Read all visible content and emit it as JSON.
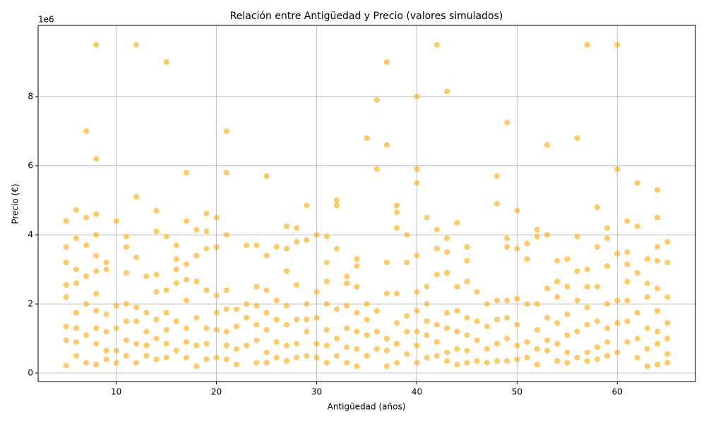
{
  "chart_data": {
    "type": "scatter",
    "title": "Relación entre Antigüedad y Precio (valores simulados)",
    "x_label": "Antigüedad (años)",
    "y_label": "Precio (€)",
    "y_offset_label": "1e6",
    "color": "orange",
    "alpha": 0.6,
    "grid": true,
    "xlim": [
      2.2,
      67.8
    ],
    "ylim": [
      -245000,
      10060000
    ],
    "xticks": [
      10,
      20,
      30,
      40,
      50,
      60
    ],
    "yticks": [
      {
        "value": 0,
        "label": "0"
      },
      {
        "value": 2000000,
        "label": "2"
      },
      {
        "value": 4000000,
        "label": "4"
      },
      {
        "value": 6000000,
        "label": "6"
      },
      {
        "value": 8000000,
        "label": "8"
      }
    ],
    "x": [
      5,
      5,
      5,
      5,
      5,
      5,
      5,
      5,
      6,
      6,
      6,
      6,
      6,
      6,
      6,
      6,
      7,
      7,
      7,
      7,
      7,
      7,
      7,
      8,
      8,
      8,
      8,
      8,
      8,
      8,
      8,
      8,
      8,
      8,
      9,
      9,
      9,
      9,
      9,
      9,
      10,
      10,
      10,
      10,
      10,
      11,
      11,
      11,
      11,
      11,
      11,
      11,
      12,
      12,
      12,
      12,
      12,
      12,
      12,
      13,
      13,
      13,
      13,
      13,
      14,
      14,
      14,
      14,
      14,
      14,
      14,
      15,
      15,
      15,
      15,
      15,
      15,
      15,
      16,
      16,
      16,
      16,
      16,
      16,
      17,
      17,
      17,
      17,
      17,
      17,
      17,
      17,
      18,
      18,
      18,
      18,
      18,
      18,
      19,
      19,
      19,
      19,
      19,
      19,
      19,
      20,
      20,
      20,
      20,
      20,
      20,
      21,
      21,
      21,
      21,
      21,
      21,
      21,
      21,
      22,
      22,
      22,
      22,
      23,
      23,
      23,
      23,
      24,
      24,
      24,
      24,
      24,
      24,
      25,
      25,
      25,
      25,
      25,
      25,
      25,
      26,
      26,
      26,
      26,
      26,
      27,
      27,
      27,
      27,
      27,
      27,
      27,
      28,
      28,
      28,
      28,
      28,
      28,
      29,
      29,
      29,
      29,
      29,
      29,
      30,
      30,
      30,
      30,
      30,
      31,
      31,
      31,
      31,
      31,
      31,
      31,
      32,
      32,
      32,
      32,
      32,
      32,
      33,
      33,
      33,
      33,
      33,
      33,
      34,
      34,
      34,
      34,
      34,
      34,
      34,
      35,
      35,
      35,
      35,
      35,
      36,
      36,
      36,
      36,
      36,
      37,
      37,
      37,
      37,
      37,
      37,
      37,
      38,
      38,
      38,
      38,
      38,
      38,
      38,
      39,
      39,
      39,
      39,
      39,
      40,
      40,
      40,
      40,
      40,
      40,
      40,
      40,
      40,
      41,
      41,
      41,
      41,
      41,
      41,
      42,
      42,
      42,
      42,
      42,
      42,
      42,
      43,
      43,
      43,
      43,
      43,
      43,
      43,
      43,
      44,
      44,
      44,
      44,
      44,
      44,
      45,
      45,
      45,
      45,
      45,
      45,
      45,
      46,
      46,
      46,
      46,
      47,
      47,
      47,
      47,
      48,
      48,
      48,
      48,
      48,
      48,
      49,
      49,
      49,
      49,
      49,
      49,
      49,
      50,
      50,
      50,
      50,
      50,
      50,
      51,
      51,
      51,
      51,
      51,
      52,
      52,
      52,
      52,
      52,
      52,
      53,
      53,
      53,
      53,
      53,
      53,
      54,
      54,
      54,
      54,
      54,
      54,
      55,
      55,
      55,
      55,
      55,
      55,
      56,
      56,
      56,
      56,
      56,
      56,
      57,
      57,
      57,
      57,
      57,
      57,
      57,
      58,
      58,
      58,
      58,
      58,
      58,
      59,
      59,
      59,
      59,
      59,
      59,
      59,
      60,
      60,
      60,
      60,
      60,
      60,
      61,
      61,
      61,
      61,
      61,
      61,
      61,
      62,
      62,
      62,
      62,
      62,
      62,
      63,
      63,
      63,
      63,
      63,
      63,
      64,
      64,
      64,
      64,
      64,
      64,
      64,
      64,
      64,
      65,
      65,
      65,
      65,
      65,
      65,
      65
    ],
    "values": [
      220000,
      950000,
      1350000,
      2200000,
      2550000,
      3200000,
      3650000,
      4400000,
      500000,
      900000,
      1300000,
      1750000,
      2600000,
      3000000,
      3900000,
      4720000,
      300000,
      1100000,
      2000000,
      2800000,
      3700000,
      4500000,
      7000000,
      250000,
      850000,
      1300000,
      1800000,
      2300000,
      2950000,
      3400000,
      4000000,
      4600000,
      6200000,
      9500000,
      400000,
      650000,
      1200000,
      1700000,
      3000000,
      3200000,
      300000,
      650000,
      1300000,
      1950000,
      4400000,
      500000,
      950000,
      1500000,
      2000000,
      2900000,
      3650000,
      3950000,
      300000,
      850000,
      1500000,
      1900000,
      3350000,
      5100000,
      9500000,
      500000,
      800000,
      1200000,
      1750000,
      2800000,
      400000,
      1000000,
      1550000,
      2350000,
      2850000,
      4100000,
      4700000,
      450000,
      850000,
      1250000,
      1750000,
      2400000,
      3950000,
      9000000,
      650000,
      1500000,
      2600000,
      3000000,
      3300000,
      3700000,
      450000,
      900000,
      1300000,
      2100000,
      2700000,
      3150000,
      4400000,
      5800000,
      200000,
      800000,
      1600000,
      2650000,
      3400000,
      4150000,
      400000,
      850000,
      1300000,
      2400000,
      3600000,
      4100000,
      4620000,
      450000,
      1250000,
      1750000,
      2250000,
      3650000,
      4500000,
      400000,
      800000,
      1200000,
      1850000,
      2400000,
      4000000,
      5800000,
      7000000,
      250000,
      700000,
      1350000,
      1850000,
      800000,
      1600000,
      2000000,
      3700000,
      300000,
      950000,
      1400000,
      1950000,
      2500000,
      3700000,
      300000,
      600000,
      1250000,
      1750000,
      2400000,
      3400000,
      5700000,
      450000,
      900000,
      1550000,
      2100000,
      3650000,
      350000,
      800000,
      1400000,
      1950000,
      2950000,
      3600000,
      4250000,
      450000,
      850000,
      1550000,
      2550000,
      3800000,
      4200000,
      500000,
      1200000,
      1550000,
      2000000,
      3850000,
      4850000,
      450000,
      850000,
      1600000,
      2350000,
      4000000,
      300000,
      800000,
      1250000,
      2000000,
      2650000,
      3200000,
      3950000,
      500000,
      1000000,
      1850000,
      3600000,
      4850000,
      5000000,
      300000,
      750000,
      1300000,
      1950000,
      2600000,
      2800000,
      200000,
      700000,
      1200000,
      1750000,
      2500000,
      3100000,
      3300000,
      500000,
      1100000,
      1550000,
      2000000,
      6800000,
      700000,
      1200000,
      1800000,
      5900000,
      7900000,
      200000,
      650000,
      1000000,
      2300000,
      3200000,
      6600000,
      9000000,
      300000,
      850000,
      1450000,
      2300000,
      4200000,
      4650000,
      4850000,
      550000,
      1200000,
      1650000,
      3200000,
      4000000,
      300000,
      800000,
      1200000,
      1800000,
      2350000,
      3400000,
      5500000,
      5900000,
      8000000,
      450000,
      1100000,
      1500000,
      2000000,
      2500000,
      4500000,
      500000,
      900000,
      1400000,
      2850000,
      3600000,
      4150000,
      9500000,
      350000,
      600000,
      1300000,
      1750000,
      2900000,
      3500000,
      3900000,
      8150000,
      250000,
      700000,
      1200000,
      1800000,
      2500000,
      4350000,
      300000,
      650000,
      1100000,
      1600000,
      2650000,
      3250000,
      3650000,
      350000,
      950000,
      1500000,
      2350000,
      300000,
      700000,
      1350000,
      2000000,
      350000,
      850000,
      1550000,
      2100000,
      4900000,
      5700000,
      350000,
      1000000,
      1600000,
      2100000,
      3650000,
      3900000,
      7250000,
      400000,
      800000,
      1400000,
      2150000,
      3600000,
      4700000,
      450000,
      900000,
      2000000,
      3300000,
      3750000,
      250000,
      700000,
      1250000,
      2000000,
      3950000,
      4150000,
      650000,
      950000,
      1600000,
      2450000,
      4000000,
      6600000,
      350000,
      850000,
      1450000,
      2200000,
      2650000,
      3250000,
      300000,
      600000,
      1100000,
      1700000,
      2500000,
      3300000,
      450000,
      1200000,
      2100000,
      2950000,
      3950000,
      6800000,
      350000,
      600000,
      1400000,
      1900000,
      2500000,
      3000000,
      9500000,
      400000,
      750000,
      1500000,
      2500000,
      3650000,
      4800000,
      500000,
      900000,
      1300000,
      2000000,
      3100000,
      3900000,
      4200000,
      600000,
      1450000,
      2100000,
      3450000,
      5900000,
      9500000,
      900000,
      1500000,
      2100000,
      2650000,
      3150000,
      3500000,
      4400000,
      450000,
      1000000,
      1750000,
      2900000,
      4250000,
      5500000,
      200000,
      700000,
      1300000,
      2200000,
      2600000,
      3300000,
      250000,
      850000,
      1200000,
      1800000,
      2450000,
      3250000,
      3650000,
      4500000,
      5300000,
      300000,
      550000,
      1000000,
      1450000,
      2200000,
      3200000,
      3800000
    ]
  }
}
